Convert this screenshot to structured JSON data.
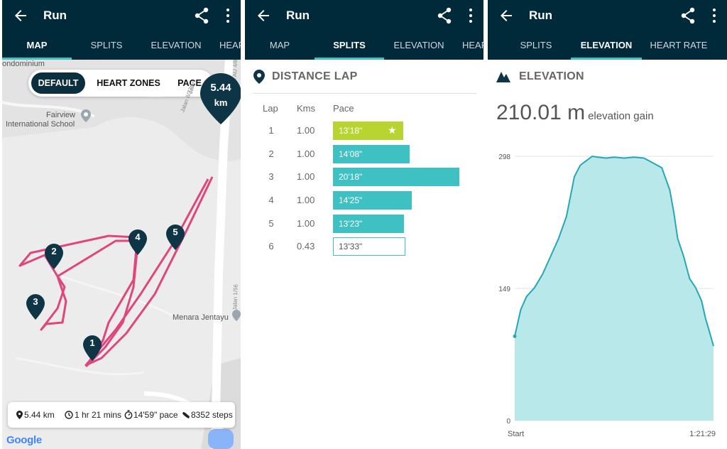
{
  "map_panel": {
    "header": {
      "title": "Run"
    },
    "tabs": [
      {
        "label": "MAP",
        "active": true
      },
      {
        "label": "SPLITS",
        "active": false
      },
      {
        "label": "ELEVATION",
        "active": false
      },
      {
        "label": "HEAR",
        "active": false
      }
    ],
    "toggle": {
      "options": [
        "DEFAULT",
        "HEART ZONES",
        "PACE"
      ],
      "selected": "DEFAULT"
    },
    "map_labels": {
      "condominium": "ondominium",
      "school_line1": "Fairview",
      "school_line2": "International School",
      "jalan_a": "Jalan 8/27d",
      "jalan_b": "Jalan",
      "jalan_c": "Jalan AU 4/8",
      "jalan_d": "Jalan 1/56",
      "menara": "Menara Jentayu"
    },
    "lap_markers": [
      "1",
      "2",
      "3",
      "4",
      "5"
    ],
    "total_marker": {
      "value": "5.44",
      "unit": "km"
    },
    "summary": {
      "distance": "5.44 km",
      "duration": "1 hr 21 mins",
      "pace": "14'59\" pace",
      "steps": "8352 steps"
    },
    "attribution": "Google",
    "colors": {
      "route": "#e0457b",
      "pin": "#0e3546"
    }
  },
  "splits_panel": {
    "header": {
      "title": "Run"
    },
    "tabs": [
      {
        "label": "MAP",
        "active": false
      },
      {
        "label": "SPLITS",
        "active": true
      },
      {
        "label": "ELEVATION",
        "active": false
      },
      {
        "label": "HEAR",
        "active": false
      }
    ],
    "section_title": "DISTANCE LAP",
    "columns": {
      "lap": "Lap",
      "kms": "Kms",
      "pace": "Pace"
    },
    "rows": [
      {
        "lap": "1",
        "kms": "1.00",
        "pace": "13'18\"",
        "best": true
      },
      {
        "lap": "2",
        "kms": "1.00",
        "pace": "14'08\""
      },
      {
        "lap": "3",
        "kms": "1.00",
        "pace": "20'18\""
      },
      {
        "lap": "4",
        "kms": "1.00",
        "pace": "14'25\""
      },
      {
        "lap": "5",
        "kms": "1.00",
        "pace": "13'23\""
      },
      {
        "lap": "6",
        "kms": "0.43",
        "pace": "13'33\"",
        "partial": true
      }
    ],
    "best_marker": "★",
    "colors": {
      "bar": "#3fc1c4",
      "best_bar": "#b8d430"
    }
  },
  "elevation_panel": {
    "header": {
      "title": "Run"
    },
    "tabs": [
      {
        "label": "SPLITS",
        "active": false
      },
      {
        "label": "ELEVATION",
        "active": true
      },
      {
        "label": "HEART RATE",
        "active": false
      }
    ],
    "section_title": "ELEVATION",
    "gain_value": "210.01 m",
    "gain_label": "elevation gain",
    "chart_data": {
      "type": "area",
      "x_start_label": "Start",
      "x_end_label": "1:21:29",
      "y_ticks": [
        0,
        149,
        298
      ],
      "ylim": [
        0,
        298
      ],
      "x": [
        0,
        0.03,
        0.06,
        0.1,
        0.14,
        0.18,
        0.22,
        0.26,
        0.3,
        0.33,
        0.36,
        0.39,
        0.42,
        0.46,
        0.5,
        0.55,
        0.6,
        0.65,
        0.7,
        0.74,
        0.78,
        0.8,
        0.82,
        0.85,
        0.88,
        0.91,
        0.94,
        0.96,
        0.98,
        1.0
      ],
      "values": [
        95,
        125,
        140,
        150,
        165,
        185,
        205,
        230,
        275,
        288,
        293,
        298,
        297,
        296,
        297,
        296,
        297,
        296,
        290,
        285,
        260,
        235,
        205,
        185,
        160,
        150,
        135,
        115,
        100,
        84
      ],
      "grid": true,
      "colors": {
        "line": "#25a7b5",
        "fill": "#b8e8ea"
      }
    }
  }
}
